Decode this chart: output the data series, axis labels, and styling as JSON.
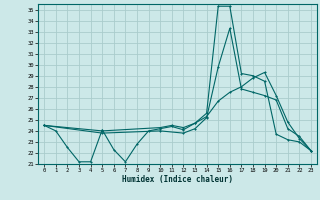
{
  "xlabel": "Humidex (Indice chaleur)",
  "bg_color": "#cce8e8",
  "grid_color": "#aacccc",
  "line_color": "#006666",
  "xlim": [
    -0.5,
    23.5
  ],
  "ylim": [
    21,
    35.5
  ],
  "xticks": [
    0,
    1,
    2,
    3,
    4,
    5,
    6,
    7,
    8,
    9,
    10,
    11,
    12,
    13,
    14,
    15,
    16,
    17,
    18,
    19,
    20,
    21,
    22,
    23
  ],
  "yticks": [
    21,
    22,
    23,
    24,
    25,
    26,
    27,
    28,
    29,
    30,
    31,
    32,
    33,
    34,
    35
  ],
  "line1_x": [
    0,
    1,
    2,
    3,
    4,
    5,
    6,
    7,
    8,
    9,
    10,
    11,
    12,
    13,
    14,
    15,
    16,
    17,
    18,
    19,
    20,
    21,
    22,
    23
  ],
  "line1_y": [
    24.5,
    24.0,
    22.5,
    21.2,
    21.2,
    24.1,
    22.3,
    21.2,
    22.8,
    24.0,
    24.2,
    24.4,
    24.1,
    24.7,
    25.6,
    35.3,
    35.3,
    29.2,
    29.0,
    28.5,
    23.7,
    23.2,
    23.0,
    22.2
  ],
  "line2_x": [
    0,
    5,
    10,
    12,
    13,
    14,
    15,
    16,
    17,
    18,
    19,
    20,
    21,
    22,
    23
  ],
  "line2_y": [
    24.5,
    23.8,
    24.0,
    23.8,
    24.2,
    25.2,
    29.8,
    33.3,
    27.8,
    27.5,
    27.2,
    26.8,
    24.2,
    23.5,
    22.2
  ],
  "line3_x": [
    0,
    5,
    10,
    11,
    12,
    13,
    14,
    15,
    16,
    17,
    18,
    19,
    20,
    21,
    22,
    23
  ],
  "line3_y": [
    24.5,
    24.0,
    24.3,
    24.5,
    24.3,
    24.7,
    25.3,
    26.7,
    27.5,
    28.0,
    28.8,
    29.3,
    27.2,
    24.8,
    23.3,
    22.2
  ]
}
